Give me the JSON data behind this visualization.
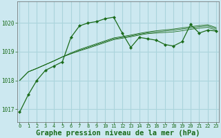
{
  "background_color": "#cce8f0",
  "plot_bg_color": "#cce8f0",
  "grid_color": "#aad4dc",
  "line_color": "#1a6b1a",
  "marker_color": "#1a6b1a",
  "xlabel": "Graphe pression niveau de la mer (hPa)",
  "xlabel_fontsize": 7.5,
  "ytick_labels": [
    "1017",
    "1018",
    "1019",
    "1020"
  ],
  "yticks": [
    1017,
    1018,
    1019,
    1020
  ],
  "xtick_labels": [
    "0",
    "1",
    "2",
    "3",
    "4",
    "5",
    "6",
    "7",
    "8",
    "9",
    "10",
    "11",
    "12",
    "13",
    "14",
    "15",
    "16",
    "17",
    "18",
    "19",
    "20",
    "21",
    "22",
    "23"
  ],
  "xticks": [
    0,
    1,
    2,
    3,
    4,
    5,
    6,
    7,
    8,
    9,
    10,
    11,
    12,
    13,
    14,
    15,
    16,
    17,
    18,
    19,
    20,
    21,
    22,
    23
  ],
  "xlim": [
    -0.3,
    23.3
  ],
  "ylim": [
    1016.55,
    1020.75
  ],
  "series": [
    [
      1016.9,
      1017.5,
      1018.0,
      1018.35,
      1018.5,
      1018.65,
      1019.5,
      1019.9,
      1020.0,
      1020.05,
      1020.15,
      1020.2,
      1019.65,
      1019.15,
      1019.5,
      1019.45,
      1019.4,
      1019.25,
      1019.2,
      1019.35,
      1019.95,
      1019.65,
      1019.75,
      1019.72
    ],
    [
      1018.0,
      1018.3,
      1018.42,
      1018.55,
      1018.68,
      1018.82,
      1018.93,
      1019.03,
      1019.12,
      1019.22,
      1019.32,
      1019.42,
      1019.47,
      1019.52,
      1019.58,
      1019.63,
      1019.65,
      1019.67,
      1019.69,
      1019.73,
      1019.78,
      1019.82,
      1019.85,
      1019.75
    ],
    [
      1018.0,
      1018.3,
      1018.42,
      1018.55,
      1018.68,
      1018.82,
      1018.93,
      1019.05,
      1019.15,
      1019.25,
      1019.35,
      1019.45,
      1019.5,
      1019.55,
      1019.61,
      1019.66,
      1019.69,
      1019.72,
      1019.75,
      1019.79,
      1019.83,
      1019.87,
      1019.9,
      1019.8
    ],
    [
      1018.0,
      1018.3,
      1018.42,
      1018.55,
      1018.68,
      1018.82,
      1018.96,
      1019.08,
      1019.18,
      1019.28,
      1019.38,
      1019.48,
      1019.53,
      1019.58,
      1019.64,
      1019.69,
      1019.73,
      1019.76,
      1019.79,
      1019.83,
      1019.87,
      1019.91,
      1019.94,
      1019.84
    ]
  ]
}
